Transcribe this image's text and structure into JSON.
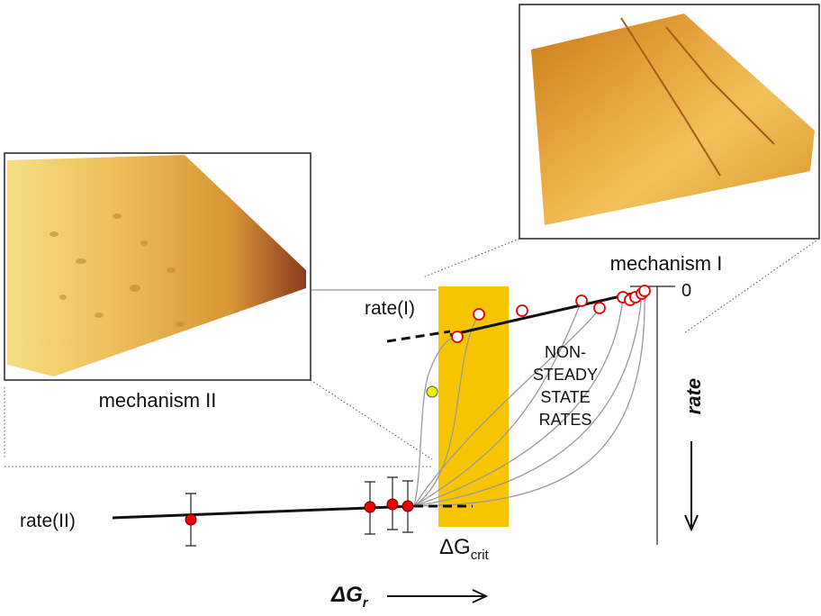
{
  "labels": {
    "mechanism_1": "mechanism I",
    "mechanism_2": "mechanism II",
    "zero": "0",
    "rate_1": "rate(I)",
    "rate_2": "rate(II)",
    "non_steady": [
      "NON-",
      "STEADY",
      "STATE",
      "RATES"
    ],
    "rate_axis": "rate",
    "dg_crit": {
      "symbol": "ΔG",
      "subscript": "crit"
    },
    "dg_r": {
      "symbol": "ΔG",
      "subscript": "r"
    }
  }
}
